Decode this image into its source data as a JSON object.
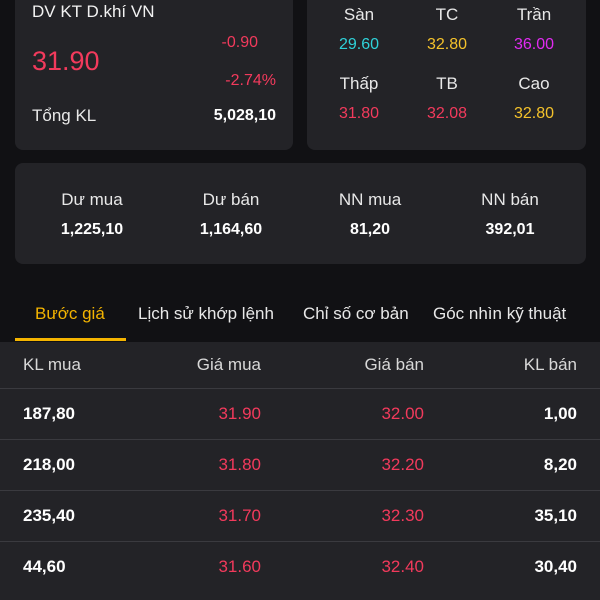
{
  "quote": {
    "name": "DV KT D.khí VN",
    "price": "31.90",
    "change": "-0.90",
    "change_pct": "-2.74%",
    "total_volume_label": "Tổng KL",
    "total_volume": "5,028,10"
  },
  "prices": {
    "floor": {
      "label": "Sàn",
      "value": "29.60"
    },
    "reference": {
      "label": "TC",
      "value": "32.80"
    },
    "ceiling": {
      "label": "Trần",
      "value": "36.00"
    },
    "low": {
      "label": "Thấp",
      "value": "31.80"
    },
    "average": {
      "label": "TB",
      "value": "32.08"
    },
    "high": {
      "label": "Cao",
      "value": "32.80"
    }
  },
  "stats": [
    {
      "label": "Dư mua",
      "value": "1,225,10"
    },
    {
      "label": "Dư bán",
      "value": "1,164,60"
    },
    {
      "label": "NN mua",
      "value": "81,20"
    },
    {
      "label": "NN bán",
      "value": "392,01"
    }
  ],
  "tabs": [
    {
      "label": "Bước giá",
      "active": true
    },
    {
      "label": "Lịch sử khớp lệnh",
      "active": false
    },
    {
      "label": "Chỉ số cơ bản",
      "active": false
    },
    {
      "label": "Góc nhìn kỹ thuật",
      "active": false
    }
  ],
  "orderbook": {
    "headers": [
      "KL mua",
      "Giá mua",
      "Giá bán",
      "KL bán"
    ],
    "rows": [
      {
        "bid_vol": "187,80",
        "bid": "31.90",
        "ask": "32.00",
        "ask_vol": "1,00"
      },
      {
        "bid_vol": "218,00",
        "bid": "31.80",
        "ask": "32.20",
        "ask_vol": "8,20"
      },
      {
        "bid_vol": "235,40",
        "bid": "31.70",
        "ask": "32.30",
        "ask_vol": "35,10"
      },
      {
        "bid_vol": "44,60",
        "bid": "31.60",
        "ask": "32.40",
        "ask_vol": "30,40"
      }
    ]
  },
  "colors": {
    "down": "#f23a5c",
    "floor": "#2fd2d9",
    "reference": "#f4c22b",
    "ceiling": "#e12bf2",
    "accent": "#f4b400"
  }
}
